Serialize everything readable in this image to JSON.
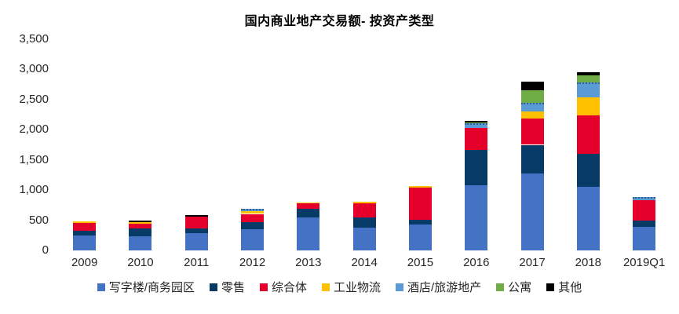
{
  "title": "国内商业地产交易额- 按资产类型",
  "chart_data": {
    "type": "bar",
    "stacked": true,
    "title": "国内商业地产交易额- 按资产类型",
    "categories": [
      "2009",
      "2010",
      "2011",
      "2012",
      "2013",
      "2014",
      "2015",
      "2016",
      "2017",
      "2018",
      "2019Q1"
    ],
    "series": [
      {
        "name": "写字楼/商务园区",
        "color": "#4472C4",
        "values": [
          250,
          230,
          280,
          350,
          550,
          380,
          430,
          1075,
          1270,
          1050,
          395
        ]
      },
      {
        "name": "零售",
        "color": "#073A66",
        "values": [
          80,
          140,
          80,
          120,
          135,
          170,
          80,
          590,
          480,
          555,
          95
        ]
      },
      {
        "name": "综合体",
        "color": "#E4002B",
        "values": [
          130,
          75,
          200,
          135,
          90,
          235,
          535,
          360,
          430,
          630,
          340
        ]
      },
      {
        "name": "工业物流",
        "color": "#FFC000",
        "values": [
          25,
          25,
          0,
          50,
          25,
          25,
          25,
          0,
          125,
          300,
          0
        ]
      },
      {
        "name": "酒店/旅游地产",
        "color": "#5B9BD5",
        "dashed_top": true,
        "values": [
          0,
          0,
          0,
          40,
          0,
          0,
          0,
          80,
          140,
          255,
          55
        ]
      },
      {
        "name": "公寓",
        "color": "#70AD47",
        "values": [
          0,
          0,
          0,
          0,
          0,
          0,
          0,
          15,
          205,
          115,
          0
        ]
      },
      {
        "name": "其他",
        "color": "#000000",
        "values": [
          0,
          25,
          20,
          0,
          0,
          0,
          0,
          25,
          150,
          45,
          0
        ]
      }
    ],
    "ylim": [
      0,
      3500
    ],
    "ytick_step": 500,
    "yticks": [
      "0",
      "500",
      "1,000",
      "1,500",
      "2,000",
      "2,500",
      "3,000",
      "3,500"
    ],
    "grid": false,
    "legend_position": "bottom"
  }
}
